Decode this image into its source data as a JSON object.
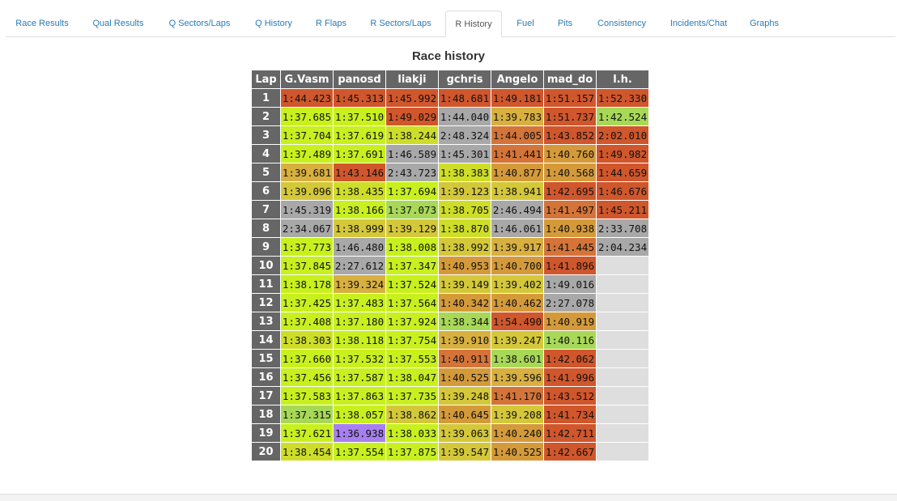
{
  "tabs": [
    {
      "label": "Race Results",
      "active": false
    },
    {
      "label": "Qual Results",
      "active": false
    },
    {
      "label": "Q Sectors/Laps",
      "active": false
    },
    {
      "label": "Q History",
      "active": false
    },
    {
      "label": "R Flaps",
      "active": false
    },
    {
      "label": "R Sectors/Laps",
      "active": false
    },
    {
      "label": "R History",
      "active": true
    },
    {
      "label": "Fuel",
      "active": false
    },
    {
      "label": "Pits",
      "active": false
    },
    {
      "label": "Consistency",
      "active": false
    },
    {
      "label": "Incidents/Chat",
      "active": false
    },
    {
      "label": "Graphs",
      "active": false
    }
  ],
  "title": "Race history",
  "columns": [
    "Lap",
    "G.Vasm",
    "panosd",
    "liakji",
    "gchris",
    "Angelo",
    "mad_do",
    "l.h."
  ],
  "colors": {
    "header_bg": "#666666",
    "purple": "#a87ff0",
    "green_best": "#a8d858",
    "lime": "#c8f01e",
    "yellowgreen": "#cede28",
    "olive": "#d4c83a",
    "mustard": "#d8b040",
    "amber": "#d49a3a",
    "orange": "#d47438",
    "red": "#d0562c",
    "gray": "#a8a8a8",
    "empty": "#dedede"
  },
  "rows": [
    {
      "lap": "1",
      "cells": [
        [
          "1:44.423",
          "red"
        ],
        [
          "1:45.313",
          "red"
        ],
        [
          "1:45.992",
          "red"
        ],
        [
          "1:48.681",
          "red"
        ],
        [
          "1:49.181",
          "red"
        ],
        [
          "1:51.157",
          "red"
        ],
        [
          "1:52.330",
          "red"
        ]
      ]
    },
    {
      "lap": "2",
      "cells": [
        [
          "1:37.685",
          "lime"
        ],
        [
          "1:37.510",
          "lime"
        ],
        [
          "1:49.029",
          "red"
        ],
        [
          "1:44.040",
          "gray"
        ],
        [
          "1:39.783",
          "mustard"
        ],
        [
          "1:51.737",
          "red"
        ],
        [
          "1:42.524",
          "green_best"
        ]
      ]
    },
    {
      "lap": "3",
      "cells": [
        [
          "1:37.704",
          "lime"
        ],
        [
          "1:37.619",
          "lime"
        ],
        [
          "1:38.244",
          "yellowgreen"
        ],
        [
          "2:48.324",
          "gray"
        ],
        [
          "1:44.005",
          "orange"
        ],
        [
          "1:43.852",
          "red"
        ],
        [
          "2:02.010",
          "red"
        ]
      ]
    },
    {
      "lap": "4",
      "cells": [
        [
          "1:37.489",
          "lime"
        ],
        [
          "1:37.691",
          "lime"
        ],
        [
          "1:46.589",
          "gray"
        ],
        [
          "1:45.301",
          "gray"
        ],
        [
          "1:41.441",
          "orange"
        ],
        [
          "1:40.760",
          "amber"
        ],
        [
          "1:49.982",
          "red"
        ]
      ]
    },
    {
      "lap": "5",
      "cells": [
        [
          "1:39.681",
          "mustard"
        ],
        [
          "1:43.146",
          "red"
        ],
        [
          "2:43.723",
          "gray"
        ],
        [
          "1:38.383",
          "yellowgreen"
        ],
        [
          "1:40.877",
          "amber"
        ],
        [
          "1:40.568",
          "amber"
        ],
        [
          "1:44.659",
          "red"
        ]
      ]
    },
    {
      "lap": "6",
      "cells": [
        [
          "1:39.096",
          "olive"
        ],
        [
          "1:38.435",
          "yellowgreen"
        ],
        [
          "1:37.694",
          "lime"
        ],
        [
          "1:39.123",
          "olive"
        ],
        [
          "1:38.941",
          "olive"
        ],
        [
          "1:42.695",
          "red"
        ],
        [
          "1:46.676",
          "red"
        ]
      ]
    },
    {
      "lap": "7",
      "cells": [
        [
          "1:45.319",
          "gray"
        ],
        [
          "1:38.166",
          "lime"
        ],
        [
          "1:37.073",
          "green_best"
        ],
        [
          "1:38.705",
          "yellowgreen"
        ],
        [
          "2:46.494",
          "gray"
        ],
        [
          "1:41.497",
          "orange"
        ],
        [
          "1:45.211",
          "red"
        ]
      ]
    },
    {
      "lap": "8",
      "cells": [
        [
          "2:34.067",
          "gray"
        ],
        [
          "1:38.999",
          "olive"
        ],
        [
          "1:39.129",
          "olive"
        ],
        [
          "1:38.870",
          "yellowgreen"
        ],
        [
          "1:46.061",
          "gray"
        ],
        [
          "1:40.938",
          "amber"
        ],
        [
          "2:33.708",
          "gray"
        ]
      ]
    },
    {
      "lap": "9",
      "cells": [
        [
          "1:37.773",
          "lime"
        ],
        [
          "1:46.480",
          "gray"
        ],
        [
          "1:38.008",
          "lime"
        ],
        [
          "1:38.992",
          "olive"
        ],
        [
          "1:39.917",
          "mustard"
        ],
        [
          "1:41.445",
          "orange"
        ],
        [
          "2:04.234",
          "gray"
        ]
      ]
    },
    {
      "lap": "10",
      "cells": [
        [
          "1:37.845",
          "lime"
        ],
        [
          "2:27.612",
          "gray"
        ],
        [
          "1:37.347",
          "lime"
        ],
        [
          "1:40.953",
          "amber"
        ],
        [
          "1:40.700",
          "amber"
        ],
        [
          "1:41.896",
          "red"
        ],
        [
          "",
          "empty"
        ]
      ]
    },
    {
      "lap": "11",
      "cells": [
        [
          "1:38.178",
          "lime"
        ],
        [
          "1:39.324",
          "mustard"
        ],
        [
          "1:37.524",
          "lime"
        ],
        [
          "1:39.149",
          "olive"
        ],
        [
          "1:39.402",
          "olive"
        ],
        [
          "1:49.016",
          "gray"
        ],
        [
          "",
          "empty"
        ]
      ]
    },
    {
      "lap": "12",
      "cells": [
        [
          "1:37.425",
          "lime"
        ],
        [
          "1:37.483",
          "lime"
        ],
        [
          "1:37.564",
          "lime"
        ],
        [
          "1:40.342",
          "amber"
        ],
        [
          "1:40.462",
          "amber"
        ],
        [
          "2:27.078",
          "gray"
        ],
        [
          "",
          "empty"
        ]
      ]
    },
    {
      "lap": "13",
      "cells": [
        [
          "1:37.408",
          "lime"
        ],
        [
          "1:37.180",
          "lime"
        ],
        [
          "1:37.924",
          "lime"
        ],
        [
          "1:38.344",
          "green_best"
        ],
        [
          "1:54.490",
          "red"
        ],
        [
          "1:40.919",
          "amber"
        ],
        [
          "",
          "empty"
        ]
      ]
    },
    {
      "lap": "14",
      "cells": [
        [
          "1:38.303",
          "yellowgreen"
        ],
        [
          "1:38.118",
          "lime"
        ],
        [
          "1:37.754",
          "lime"
        ],
        [
          "1:39.910",
          "mustard"
        ],
        [
          "1:39.247",
          "olive"
        ],
        [
          "1:40.116",
          "green_best"
        ],
        [
          "",
          "empty"
        ]
      ]
    },
    {
      "lap": "15",
      "cells": [
        [
          "1:37.660",
          "lime"
        ],
        [
          "1:37.532",
          "lime"
        ],
        [
          "1:37.553",
          "lime"
        ],
        [
          "1:40.911",
          "orange"
        ],
        [
          "1:38.601",
          "green_best"
        ],
        [
          "1:42.062",
          "red"
        ],
        [
          "",
          "empty"
        ]
      ]
    },
    {
      "lap": "16",
      "cells": [
        [
          "1:37.456",
          "lime"
        ],
        [
          "1:37.587",
          "lime"
        ],
        [
          "1:38.047",
          "lime"
        ],
        [
          "1:40.525",
          "amber"
        ],
        [
          "1:39.596",
          "mustard"
        ],
        [
          "1:41.996",
          "red"
        ],
        [
          "",
          "empty"
        ]
      ]
    },
    {
      "lap": "17",
      "cells": [
        [
          "1:37.583",
          "lime"
        ],
        [
          "1:37.863",
          "lime"
        ],
        [
          "1:37.735",
          "lime"
        ],
        [
          "1:39.248",
          "olive"
        ],
        [
          "1:41.170",
          "orange"
        ],
        [
          "1:43.512",
          "red"
        ],
        [
          "",
          "empty"
        ]
      ]
    },
    {
      "lap": "18",
      "cells": [
        [
          "1:37.315",
          "green_best"
        ],
        [
          "1:38.057",
          "lime"
        ],
        [
          "1:38.862",
          "olive"
        ],
        [
          "1:40.645",
          "amber"
        ],
        [
          "1:39.208",
          "olive"
        ],
        [
          "1:41.734",
          "red"
        ],
        [
          "",
          "empty"
        ]
      ]
    },
    {
      "lap": "19",
      "cells": [
        [
          "1:37.621",
          "lime"
        ],
        [
          "1:36.938",
          "purple"
        ],
        [
          "1:38.033",
          "lime"
        ],
        [
          "1:39.063",
          "olive"
        ],
        [
          "1:40.240",
          "amber"
        ],
        [
          "1:42.711",
          "red"
        ],
        [
          "",
          "empty"
        ]
      ]
    },
    {
      "lap": "20",
      "cells": [
        [
          "1:38.454",
          "yellowgreen"
        ],
        [
          "1:37.554",
          "lime"
        ],
        [
          "1:37.875",
          "lime"
        ],
        [
          "1:39.547",
          "olive"
        ],
        [
          "1:40.525",
          "amber"
        ],
        [
          "1:42.667",
          "red"
        ],
        [
          "",
          "empty"
        ]
      ]
    }
  ]
}
